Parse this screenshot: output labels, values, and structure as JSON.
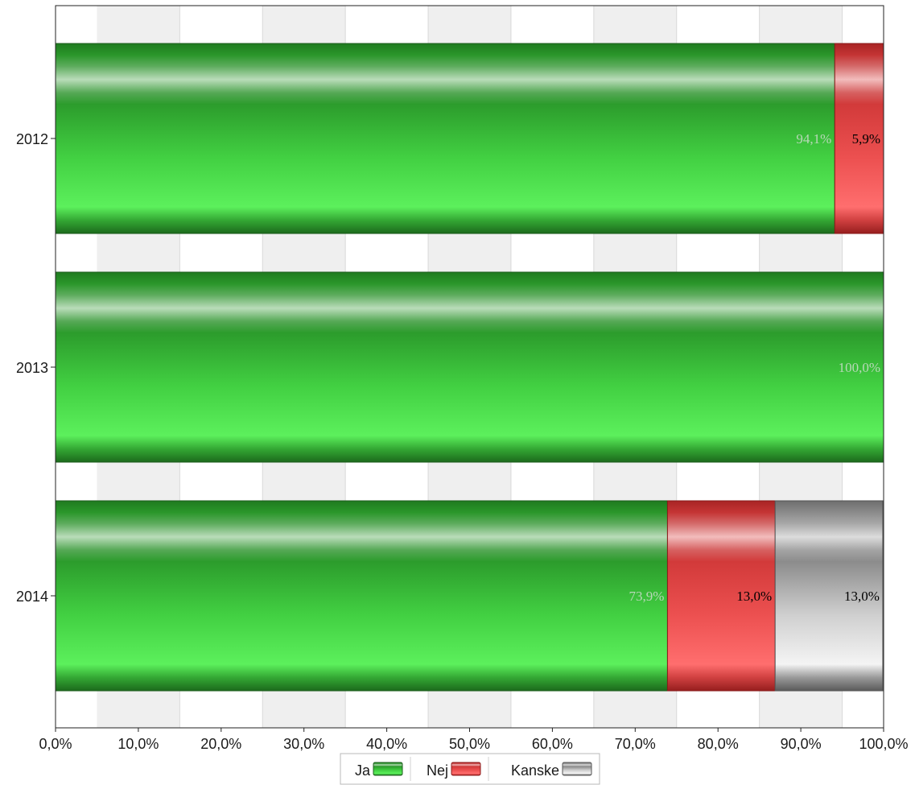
{
  "chart_data": {
    "type": "bar",
    "orientation": "horizontal",
    "stacked": true,
    "categories": [
      "2012",
      "2013",
      "2014"
    ],
    "series": [
      {
        "name": "Ja",
        "values": [
          94.1,
          100.0,
          73.9
        ],
        "labels": [
          "94,1%",
          "100,0%",
          "73,9%"
        ],
        "color": "#3cc43c",
        "label_color": "#b8d8b8"
      },
      {
        "name": "Nej",
        "values": [
          5.9,
          0,
          13.0
        ],
        "labels": [
          "5,9%",
          "",
          "13,0%"
        ],
        "color": "#e84848",
        "label_color": "#000000"
      },
      {
        "name": "Kanske",
        "values": [
          0,
          0,
          13.0
        ],
        "labels": [
          "",
          "",
          "13,0%"
        ],
        "color": "#c8c8c8",
        "label_color": "#000000"
      }
    ],
    "xlim": [
      0,
      100
    ],
    "x_ticks": [
      0,
      10,
      20,
      30,
      40,
      50,
      60,
      70,
      80,
      90,
      100
    ],
    "x_tick_labels": [
      "0,0%",
      "10,0%",
      "20,0%",
      "30,0%",
      "40,0%",
      "50,0%",
      "60,0%",
      "70,0%",
      "80,0%",
      "90,0%",
      "100,0%"
    ],
    "alternating_band_background": true,
    "legend_position": "bottom-center",
    "title": "",
    "xlabel": "",
    "ylabel": ""
  }
}
